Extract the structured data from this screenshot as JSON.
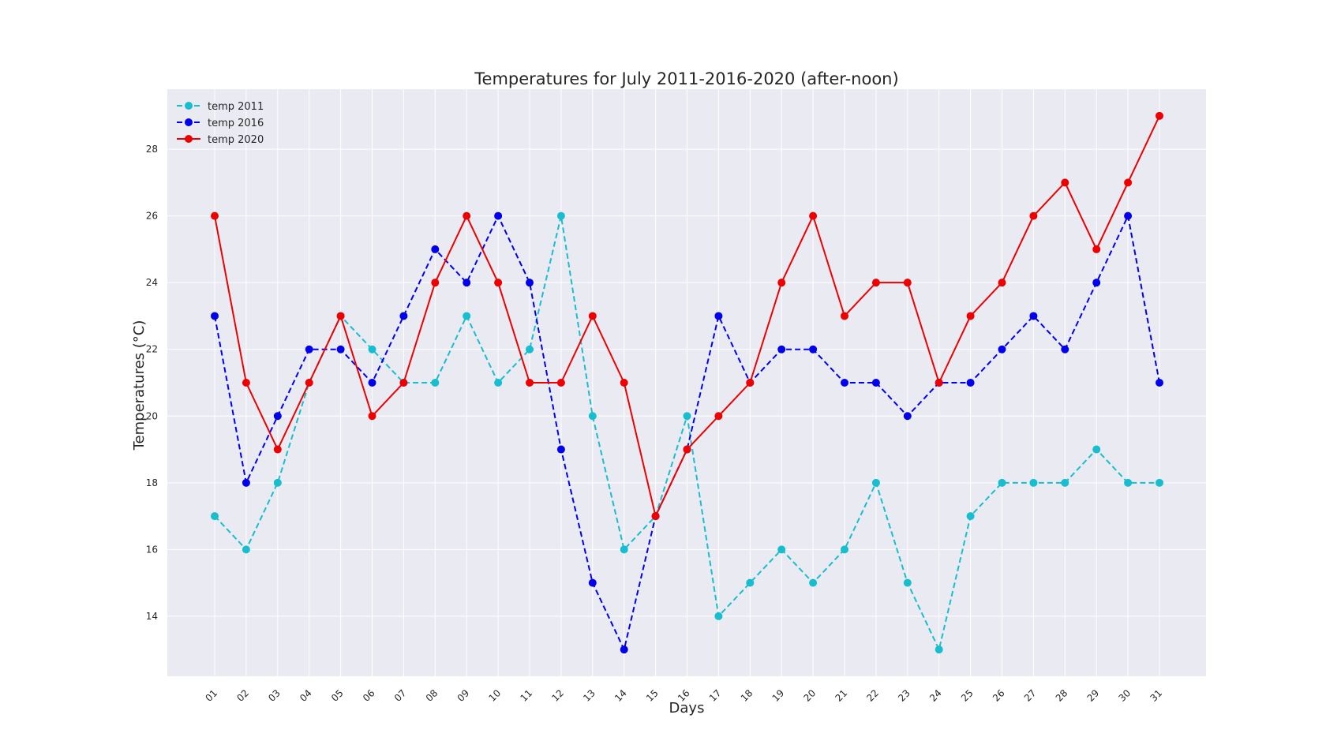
{
  "chart_data": {
    "type": "line",
    "title": "Temperatures for July 2011-2016-2020 (after-noon)",
    "xlabel": "Days",
    "ylabel": "Temperatures (°C)",
    "categories": [
      "01",
      "02",
      "03",
      "04",
      "05",
      "06",
      "07",
      "08",
      "09",
      "10",
      "11",
      "12",
      "13",
      "14",
      "15",
      "16",
      "17",
      "18",
      "19",
      "20",
      "21",
      "22",
      "23",
      "24",
      "25",
      "26",
      "27",
      "28",
      "29",
      "30",
      "31"
    ],
    "ylim": [
      12.2,
      29.8
    ],
    "yticks": [
      14,
      16,
      18,
      20,
      22,
      24,
      26,
      28
    ],
    "grid": true,
    "legend_position": "top-left",
    "series": [
      {
        "name": "temp 2011",
        "color": "#17becf",
        "line_style": "dashed",
        "values": [
          17,
          16,
          18,
          21,
          23,
          22,
          21,
          21,
          23,
          21,
          22,
          26,
          20,
          16,
          17,
          20,
          14,
          15,
          16,
          15,
          16,
          18,
          15,
          13,
          17,
          18,
          18,
          18,
          19,
          18,
          18
        ]
      },
      {
        "name": "temp 2016",
        "color": "#0000ee",
        "line_style": "dashed",
        "values": [
          23,
          18,
          20,
          22,
          22,
          21,
          23,
          25,
          24,
          26,
          24,
          19,
          15,
          13,
          17,
          19,
          23,
          21,
          22,
          22,
          21,
          21,
          20,
          21,
          21,
          22,
          23,
          22,
          24,
          26,
          21
        ]
      },
      {
        "name": "temp 2020",
        "color": "#ee0000",
        "line_style": "solid",
        "values": [
          26,
          21,
          19,
          21,
          23,
          20,
          21,
          24,
          26,
          24,
          21,
          21,
          23,
          21,
          17,
          19,
          20,
          21,
          24,
          26,
          23,
          24,
          24,
          21,
          23,
          24,
          26,
          27,
          25,
          27,
          29
        ]
      }
    ]
  }
}
